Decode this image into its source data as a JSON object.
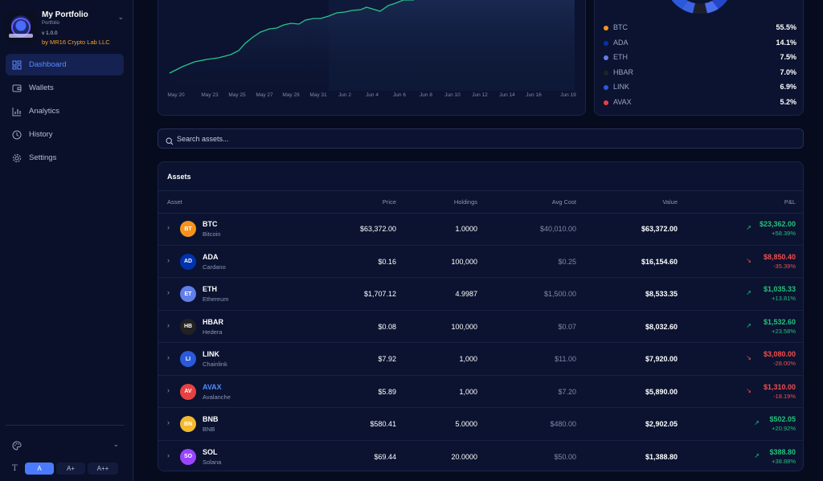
{
  "brand": {
    "title": "My Portfolio",
    "subtitle": "Portfolio",
    "version": "v 1.0.0",
    "byline": "by MR16 Crypto Lab LLC"
  },
  "nav": [
    {
      "label": "Dashboard",
      "icon": "dashboard-icon",
      "active": true
    },
    {
      "label": "Wallets",
      "icon": "wallet-icon"
    },
    {
      "label": "Analytics",
      "icon": "bar-chart-icon"
    },
    {
      "label": "History",
      "icon": "clock-icon"
    },
    {
      "label": "Settings",
      "icon": "gear-icon"
    }
  ],
  "font_sizes": [
    "A",
    "A+",
    "A++"
  ],
  "chart": {
    "x_labels": [
      "May 20",
      "May 23",
      "May 25",
      "May 27",
      "May 29",
      "May 31",
      "Jun 2",
      "Jun 4",
      "Jun 6",
      "Jun 8",
      "Jun 10",
      "Jun 12",
      "Jun 14",
      "Jun 16",
      "Jun 19"
    ],
    "line_color": "#2bc28a"
  },
  "allocation": [
    {
      "symbol": "BTC",
      "pct": "55.5%",
      "color": "#f7931a"
    },
    {
      "symbol": "ADA",
      "pct": "14.1%",
      "color": "#0033ad"
    },
    {
      "symbol": "ETH",
      "pct": "7.5%",
      "color": "#627eea"
    },
    {
      "symbol": "HBAR",
      "pct": "7.0%",
      "color": "#222222"
    },
    {
      "symbol": "LINK",
      "pct": "6.9%",
      "color": "#2a5ada"
    },
    {
      "symbol": "AVAX",
      "pct": "5.2%",
      "color": "#e84142"
    }
  ],
  "search": {
    "placeholder": "Search assets..."
  },
  "assets": {
    "title": "Assets",
    "columns": {
      "asset": "Asset",
      "price": "Price",
      "holdings": "Holdings",
      "avg_cost": "Avg Cost",
      "value": "Value",
      "pnl": "P&L"
    },
    "rows": [
      {
        "badge": "BT",
        "symbol": "BTC",
        "name": "Bitcoin",
        "price": "$63,372.00",
        "holdings": "1.0000",
        "avg_cost": "$40,010.00",
        "value": "$63,372.00",
        "pnl": "$23,362.00",
        "pnl_pct": "+58.39%",
        "positive": true,
        "color": "#f7931a"
      },
      {
        "badge": "AD",
        "symbol": "ADA",
        "name": "Cardano",
        "price": "$0.16",
        "holdings": "100,000",
        "avg_cost": "$0.25",
        "value": "$16,154.60",
        "pnl": "$8,850.40",
        "pnl_pct": "-35.39%",
        "positive": false,
        "color": "#0033ad"
      },
      {
        "badge": "ET",
        "symbol": "ETH",
        "name": "Ethereum",
        "price": "$1,707.12",
        "holdings": "4.9987",
        "avg_cost": "$1,500.00",
        "value": "$8,533.35",
        "pnl": "$1,035.33",
        "pnl_pct": "+13.81%",
        "positive": true,
        "color": "#627eea"
      },
      {
        "badge": "HB",
        "symbol": "HBAR",
        "name": "Hedera",
        "price": "$0.08",
        "holdings": "100,000",
        "avg_cost": "$0.07",
        "value": "$8,032.60",
        "pnl": "$1,532.60",
        "pnl_pct": "+23.58%",
        "positive": true,
        "color": "#222222"
      },
      {
        "badge": "LI",
        "symbol": "LINK",
        "name": "Chainlink",
        "price": "$7.92",
        "holdings": "1,000",
        "avg_cost": "$11.00",
        "value": "$7,920.00",
        "pnl": "$3,080.00",
        "pnl_pct": "-28.00%",
        "positive": false,
        "color": "#2a5ada"
      },
      {
        "badge": "AV",
        "symbol": "AVAX",
        "name": "Avalanche",
        "price": "$5.89",
        "holdings": "1,000",
        "avg_cost": "$7.20",
        "value": "$5,890.00",
        "pnl": "$1,310.00",
        "pnl_pct": "-18.19%",
        "positive": false,
        "color": "#e84142",
        "highlight": true
      },
      {
        "badge": "BN",
        "symbol": "BNB",
        "name": "BNB",
        "price": "$580.41",
        "holdings": "5.0000",
        "avg_cost": "$480.00",
        "value": "$2,902.05",
        "pnl": "$502.05",
        "pnl_pct": "+20.92%",
        "positive": true,
        "color": "#f3ba2f"
      },
      {
        "badge": "SO",
        "symbol": "SOL",
        "name": "Solana",
        "price": "$69.44",
        "holdings": "20.0000",
        "avg_cost": "$50.00",
        "value": "$1,388.80",
        "pnl": "$388.80",
        "pnl_pct": "+38.88%",
        "positive": true,
        "color": "#9945ff"
      }
    ]
  }
}
